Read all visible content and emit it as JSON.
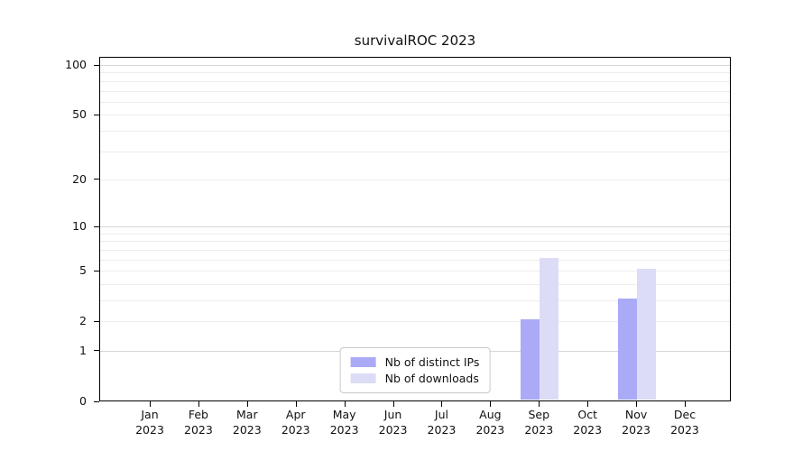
{
  "chart_data": {
    "type": "bar",
    "title": "survivalROC 2023",
    "year_label": "2023",
    "months": [
      "Jan",
      "Feb",
      "Mar",
      "Apr",
      "May",
      "Jun",
      "Jul",
      "Aug",
      "Sep",
      "Oct",
      "Nov",
      "Dec"
    ],
    "categories": [
      "Jan 2023",
      "Feb 2023",
      "Mar 2023",
      "Apr 2023",
      "May 2023",
      "Jun 2023",
      "Jul 2023",
      "Aug 2023",
      "Sep 2023",
      "Oct 2023",
      "Nov 2023",
      "Dec 2023"
    ],
    "series": [
      {
        "name": "Nb of distinct IPs",
        "color": "#aaaaf6",
        "values": [
          0,
          0,
          0,
          0,
          0,
          0,
          0,
          0,
          2,
          0,
          3,
          0
        ]
      },
      {
        "name": "Nb of downloads",
        "color": "#dcdcf6",
        "values": [
          0,
          0,
          0,
          0,
          0,
          0,
          0,
          0,
          6,
          0,
          5,
          0
        ]
      }
    ],
    "xlabel": "",
    "ylabel": "",
    "yscale": "log1p",
    "ylim": [
      0,
      112
    ],
    "y_ticks": [
      0,
      1,
      2,
      5,
      10,
      20,
      50,
      100
    ],
    "gridline_values": [
      1,
      2,
      3,
      4,
      5,
      6,
      7,
      8,
      9,
      10,
      20,
      30,
      40,
      50,
      60,
      70,
      80,
      90,
      100
    ],
    "major_gridlines": [
      1,
      10,
      100
    ],
    "grid_color_minor": "#ededed",
    "grid_color_major": "#d6d6d6",
    "grid": "horizontal",
    "legend_position": "lower center"
  }
}
